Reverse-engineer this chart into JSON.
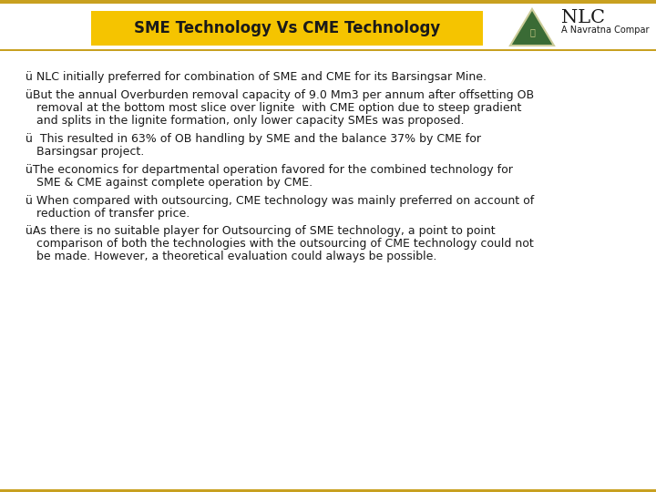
{
  "title": "SME Technology Vs CME Technology",
  "title_bg": "#F5C400",
  "title_color": "#1a1a1a",
  "nlc_text": "NLC",
  "navratna_text": "A Navratna Compar",
  "bg_color": "#FFFFFF",
  "border_top_color": "#C8A020",
  "header_line_color": "#C8A020",
  "bullet_items": [
    "ü NLC initially preferred for combination of SME and CME for its Barsingsar Mine.",
    "üBut the annual Overburden removal capacity of 9.0 Mm3 per annum after offsetting OB\n   removal at the bottom most slice over lignite  with CME option due to steep gradient\n   and splits in the lignite formation, only lower capacity SMEs was proposed.",
    "ü  This resulted in 63% of OB handling by SME and the balance 37% by CME for\n   Barsingsar project.",
    "üThe economics for departmental operation favored for the combined technology for\n   SME & CME against complete operation by CME.",
    "ü When compared with outsourcing, CME technology was mainly preferred on account of\n   reduction of transfer price.",
    "üAs there is no suitable player for Outsourcing of SME technology, a point to point\n   comparison of both the technologies with the outsourcing of CME technology could not\n   be made. However, a theoretical evaluation could always be possible."
  ],
  "font_size": 9.0,
  "figwidth": 7.2,
  "figheight": 5.4,
  "dpi": 100
}
